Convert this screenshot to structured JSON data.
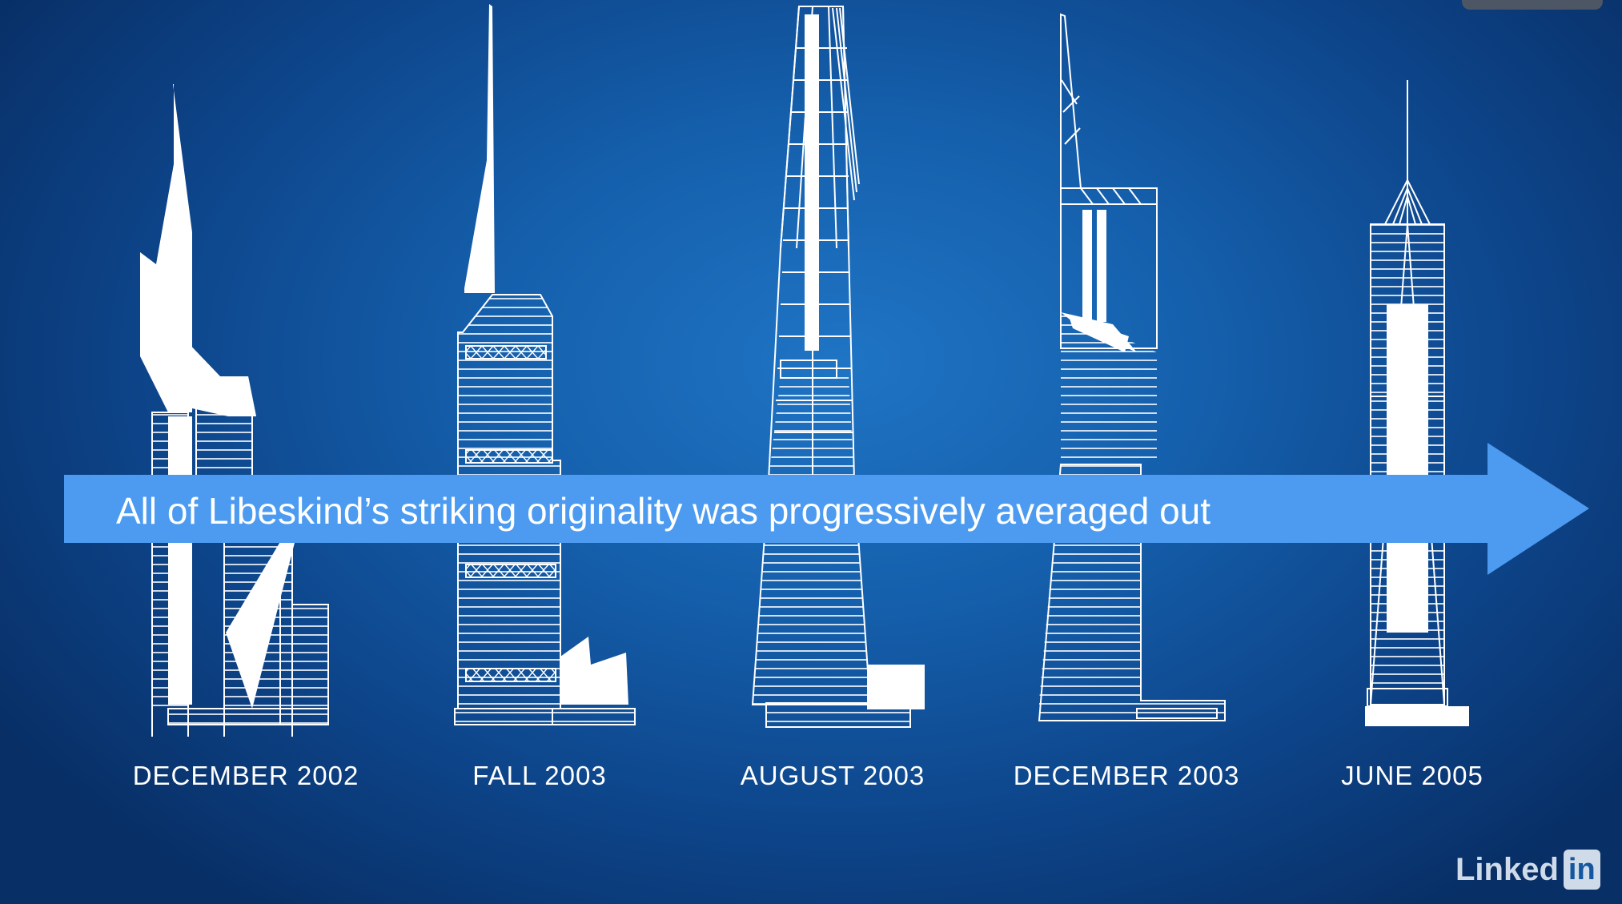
{
  "banner": {
    "text": "All of Libeskind’s striking originality was progressively averaged out",
    "color": "#4d9bf0"
  },
  "timeline": [
    {
      "label": "DECEMBER 2002",
      "icon": "tower-libeskind-icon"
    },
    {
      "label": "FALL 2003",
      "icon": "tower-fall-2003-icon"
    },
    {
      "label": "AUGUST 2003",
      "icon": "tower-august-2003-icon"
    },
    {
      "label": "DECEMBER 2003",
      "icon": "tower-december-2003-icon"
    },
    {
      "label": "JUNE 2005",
      "icon": "tower-june-2005-icon"
    }
  ],
  "logo": {
    "linked": "Linked",
    "in": "in"
  },
  "colors": {
    "background": "#1560ad",
    "line": "#ffffff"
  }
}
